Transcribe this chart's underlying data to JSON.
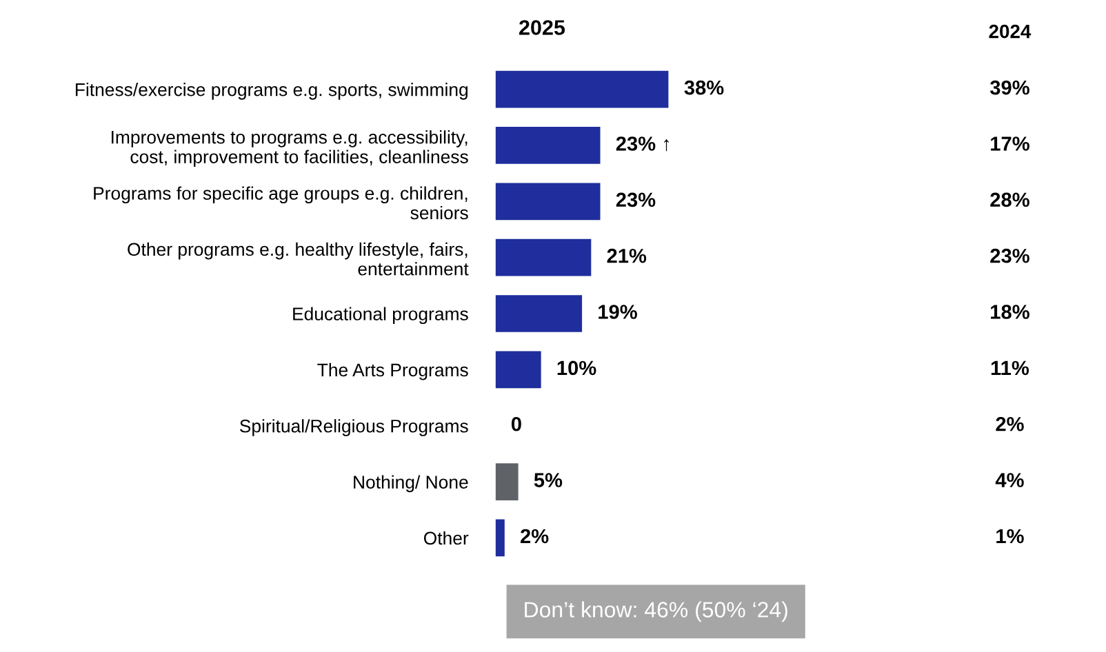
{
  "chart_data": {
    "type": "bar",
    "orientation": "horizontal",
    "title": "2025",
    "categories": [
      "Fitness/exercise programs e.g. sports, swimming",
      "Improvements to programs e.g. accessibility,\ncost, improvement to facilities, cleanliness",
      "Programs for specific age groups e.g. children,\nseniors",
      "Other programs e.g. healthy lifestyle, fairs,\nentertainment",
      "Educational programs",
      "The Arts Programs",
      "Spiritual/Religious Programs",
      "Nothing/ None",
      "Other"
    ],
    "values": [
      38,
      23,
      23,
      21,
      19,
      10,
      0,
      5,
      2
    ],
    "colors": [
      "#1f2e9c",
      "#1f2e9c",
      "#1f2e9c",
      "#1f2e9c",
      "#1f2e9c",
      "#1f2e9c",
      "#1f2e9c",
      "#5f6368",
      "#1f2e9c"
    ],
    "value_labels": [
      "38%",
      "23% ↑",
      "23%",
      "21%",
      "19%",
      "10%",
      "0",
      "5%",
      "2%"
    ],
    "tick_labels": "y",
    "grid": false,
    "annotations": [
      "2024",
      "39%",
      "17%",
      "28%",
      "23%",
      "18%",
      "11%",
      "2%",
      "4%",
      "1%",
      "Don’t know: 46% (50% ‘24)"
    ]
  }
}
